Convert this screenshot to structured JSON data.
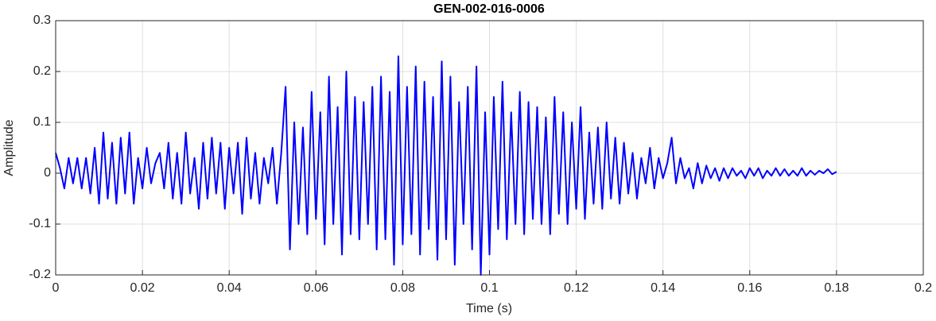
{
  "chart_data": {
    "type": "line",
    "title": "GEN-002-016-0006",
    "xlabel": "Time (s)",
    "ylabel": "Amplitude",
    "xlim": [
      0,
      0.2
    ],
    "ylim": [
      -0.2,
      0.3
    ],
    "xticks": [
      0,
      0.02,
      0.04,
      0.06,
      0.08,
      0.1,
      0.12,
      0.14,
      0.16,
      0.18,
      0.2
    ],
    "yticks": [
      -0.2,
      -0.1,
      0,
      0.1,
      0.2,
      0.3
    ],
    "grid": true,
    "x": [
      0,
      0.001,
      0.002,
      0.003,
      0.004,
      0.005,
      0.006,
      0.007,
      0.008,
      0.009,
      0.01,
      0.011,
      0.012,
      0.013,
      0.014,
      0.015,
      0.016,
      0.017,
      0.018,
      0.019,
      0.02,
      0.021,
      0.022,
      0.023,
      0.024,
      0.025,
      0.026,
      0.027,
      0.028,
      0.029,
      0.03,
      0.031,
      0.032,
      0.033,
      0.034,
      0.035,
      0.036,
      0.037,
      0.038,
      0.039,
      0.04,
      0.041,
      0.042,
      0.043,
      0.044,
      0.045,
      0.046,
      0.047,
      0.048,
      0.049,
      0.05,
      0.051,
      0.052,
      0.053,
      0.054,
      0.055,
      0.056,
      0.057,
      0.058,
      0.059,
      0.06,
      0.061,
      0.062,
      0.063,
      0.064,
      0.065,
      0.066,
      0.067,
      0.068,
      0.069,
      0.07,
      0.071,
      0.072,
      0.073,
      0.074,
      0.075,
      0.076,
      0.077,
      0.078,
      0.079,
      0.08,
      0.081,
      0.082,
      0.083,
      0.084,
      0.085,
      0.086,
      0.087,
      0.088,
      0.089,
      0.09,
      0.091,
      0.092,
      0.093,
      0.094,
      0.095,
      0.096,
      0.097,
      0.098,
      0.099,
      0.1,
      0.101,
      0.102,
      0.103,
      0.104,
      0.105,
      0.106,
      0.107,
      0.108,
      0.109,
      0.11,
      0.111,
      0.112,
      0.113,
      0.114,
      0.115,
      0.116,
      0.117,
      0.118,
      0.119,
      0.12,
      0.121,
      0.122,
      0.123,
      0.124,
      0.125,
      0.126,
      0.127,
      0.128,
      0.129,
      0.13,
      0.131,
      0.132,
      0.133,
      0.134,
      0.135,
      0.136,
      0.137,
      0.138,
      0.139,
      0.14,
      0.141,
      0.142,
      0.143,
      0.144,
      0.145,
      0.146,
      0.147,
      0.148,
      0.149,
      0.15,
      0.151,
      0.152,
      0.153,
      0.154,
      0.155,
      0.156,
      0.157,
      0.158,
      0.159,
      0.16,
      0.161,
      0.162,
      0.163,
      0.164,
      0.165,
      0.166,
      0.167,
      0.168,
      0.169,
      0.17,
      0.171,
      0.172,
      0.173,
      0.174,
      0.175,
      0.176,
      0.177,
      0.178,
      0.179,
      0.18
    ],
    "series": [
      {
        "color": "#0000ff",
        "values": [
          0.04,
          0.01,
          -0.03,
          0.03,
          -0.02,
          0.03,
          -0.03,
          0.03,
          -0.04,
          0.05,
          -0.06,
          0.08,
          -0.05,
          0.06,
          -0.06,
          0.07,
          -0.04,
          0.08,
          -0.06,
          0.03,
          -0.03,
          0.05,
          -0.02,
          0.02,
          0.04,
          -0.03,
          0.06,
          -0.05,
          0.04,
          -0.06,
          0.08,
          -0.04,
          0.03,
          -0.07,
          0.06,
          -0.05,
          0.07,
          -0.04,
          0.06,
          -0.07,
          0.05,
          -0.04,
          0.06,
          -0.08,
          0.07,
          -0.05,
          0.04,
          -0.06,
          0.03,
          -0.02,
          0.05,
          -0.06,
          0.04,
          0.17,
          -0.15,
          0.1,
          -0.1,
          0.09,
          -0.12,
          0.16,
          -0.09,
          0.12,
          -0.14,
          0.19,
          -0.1,
          0.13,
          -0.16,
          0.2,
          -0.12,
          0.15,
          -0.13,
          0.14,
          -0.1,
          0.17,
          -0.15,
          0.19,
          -0.13,
          0.16,
          -0.18,
          0.23,
          -0.14,
          0.17,
          -0.12,
          0.21,
          -0.16,
          0.18,
          -0.11,
          0.15,
          -0.17,
          0.22,
          -0.13,
          0.19,
          -0.18,
          0.14,
          -0.1,
          0.17,
          -0.15,
          0.21,
          -0.2,
          0.12,
          -0.16,
          0.15,
          -0.11,
          0.18,
          -0.13,
          0.12,
          -0.1,
          0.16,
          -0.12,
          0.14,
          -0.09,
          0.13,
          -0.1,
          0.11,
          -0.12,
          0.15,
          -0.08,
          0.12,
          -0.1,
          0.1,
          -0.07,
          0.13,
          -0.09,
          0.08,
          -0.06,
          0.09,
          -0.07,
          0.1,
          -0.05,
          0.07,
          -0.06,
          0.06,
          -0.04,
          0.04,
          -0.05,
          0.03,
          -0.02,
          0.05,
          -0.03,
          0.03,
          -0.01,
          0.02,
          0.07,
          -0.02,
          0.03,
          -0.01,
          0.01,
          -0.03,
          0.02,
          -0.02,
          0.015,
          -0.01,
          0.01,
          -0.015,
          0.01,
          -0.01,
          0.01,
          -0.005,
          0.005,
          -0.01,
          0.01,
          -0.005,
          0.01,
          -0.01,
          0.005,
          -0.005,
          0.01,
          -0.005,
          0.008,
          -0.005,
          0.005,
          -0.005,
          0.01,
          -0.005,
          0.005,
          -0.003,
          0.005,
          0,
          0.008,
          -0.002,
          0.003
        ]
      }
    ]
  }
}
